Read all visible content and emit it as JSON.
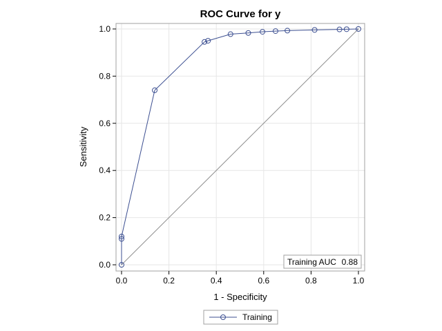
{
  "chart_data": {
    "type": "line",
    "title": "ROC Curve for y",
    "xlabel": "1 - Specificity",
    "ylabel": "Sensitivity",
    "xlim": [
      0,
      1
    ],
    "ylim": [
      0,
      1
    ],
    "x_ticks": [
      "0.0",
      "0.2",
      "0.4",
      "0.6",
      "0.8",
      "1.0"
    ],
    "y_ticks": [
      "0.0",
      "0.2",
      "0.4",
      "0.6",
      "0.8",
      "1.0"
    ],
    "grid": true,
    "legend_position": "bottom",
    "series": [
      {
        "name": "Training",
        "color": "#3c4f91",
        "marker": "circle",
        "x": [
          0.0,
          0.0,
          0.0,
          0.14,
          0.35,
          0.365,
          0.46,
          0.535,
          0.595,
          0.65,
          0.7,
          0.815,
          0.92,
          0.95,
          1.0
        ],
        "y": [
          0.0,
          0.11,
          0.12,
          0.74,
          0.945,
          0.95,
          0.978,
          0.983,
          0.988,
          0.991,
          0.993,
          0.996,
          0.998,
          0.999,
          1.0
        ]
      }
    ],
    "reference_line": {
      "x": [
        0,
        1
      ],
      "y": [
        0,
        1
      ],
      "color": "#8c8c8c"
    },
    "annotation": {
      "label": "Training AUC",
      "value": "0.88"
    }
  },
  "colors": {
    "series": "#3c4f91",
    "grid": "#e6e6e6",
    "frame": "#a0a0a0",
    "reference": "#8c8c8c"
  }
}
